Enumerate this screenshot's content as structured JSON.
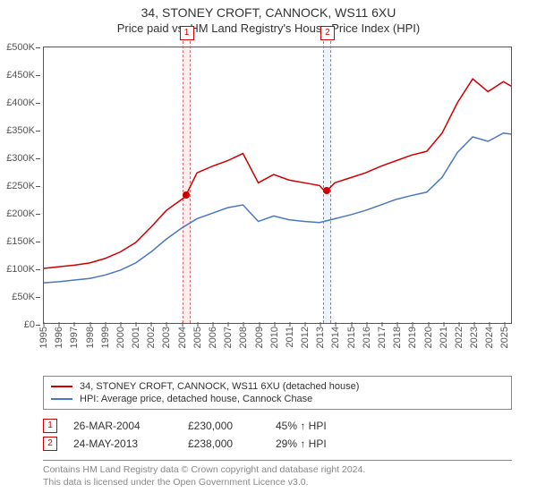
{
  "titles": {
    "line1": "34, STONEY CROFT, CANNOCK, WS11 6XU",
    "line2": "Price paid vs. HM Land Registry's House Price Index (HPI)"
  },
  "chart": {
    "type": "line",
    "background_color": "#ffffff",
    "axis_color": "#555555",
    "label_fontsize": 11,
    "x": {
      "min": 1995,
      "max": 2025.5,
      "ticks": [
        1995,
        1996,
        1997,
        1998,
        1999,
        2000,
        2001,
        2002,
        2003,
        2004,
        2005,
        2006,
        2007,
        2008,
        2009,
        2010,
        2011,
        2012,
        2013,
        2014,
        2015,
        2016,
        2017,
        2018,
        2019,
        2020,
        2021,
        2022,
        2023,
        2024,
        2025
      ]
    },
    "y": {
      "min": 0,
      "max": 500000,
      "tick_step": 50000,
      "tick_labels": [
        "£0",
        "£50K",
        "£100K",
        "£150K",
        "£200K",
        "£250K",
        "£300K",
        "£350K",
        "£400K",
        "£450K",
        "£500K"
      ]
    },
    "series": [
      {
        "key": "property",
        "color": "#cc0000",
        "line_width": 1.5,
        "legend": "34, STONEY CROFT, CANNOCK, WS11 6XU (detached house)",
        "points": [
          [
            1995,
            100000
          ],
          [
            1996,
            103000
          ],
          [
            1997,
            106000
          ],
          [
            1998,
            110000
          ],
          [
            1999,
            118000
          ],
          [
            2000,
            130000
          ],
          [
            2001,
            147000
          ],
          [
            2002,
            175000
          ],
          [
            2003,
            205000
          ],
          [
            2004,
            225000
          ],
          [
            2004.23,
            230000
          ],
          [
            2005,
            273000
          ],
          [
            2006,
            285000
          ],
          [
            2007,
            295000
          ],
          [
            2008,
            308000
          ],
          [
            2009,
            255000
          ],
          [
            2010,
            270000
          ],
          [
            2011,
            260000
          ],
          [
            2012,
            255000
          ],
          [
            2013,
            250000
          ],
          [
            2013.39,
            238000
          ],
          [
            2014,
            255000
          ],
          [
            2015,
            264000
          ],
          [
            2016,
            273000
          ],
          [
            2017,
            285000
          ],
          [
            2018,
            295000
          ],
          [
            2019,
            305000
          ],
          [
            2020,
            312000
          ],
          [
            2021,
            345000
          ],
          [
            2022,
            400000
          ],
          [
            2023,
            443000
          ],
          [
            2024,
            420000
          ],
          [
            2025,
            438000
          ],
          [
            2025.5,
            430000
          ]
        ]
      },
      {
        "key": "hpi",
        "color": "#4a77c4",
        "line_width": 1.5,
        "legend": "HPI: Average price, detached house, Cannock Chase",
        "points": [
          [
            1995,
            74000
          ],
          [
            1996,
            76000
          ],
          [
            1997,
            79000
          ],
          [
            1998,
            82000
          ],
          [
            1999,
            88000
          ],
          [
            2000,
            97000
          ],
          [
            2001,
            110000
          ],
          [
            2002,
            130000
          ],
          [
            2003,
            153000
          ],
          [
            2004,
            173000
          ],
          [
            2005,
            190000
          ],
          [
            2006,
            200000
          ],
          [
            2007,
            210000
          ],
          [
            2008,
            215000
          ],
          [
            2009,
            185000
          ],
          [
            2010,
            195000
          ],
          [
            2011,
            188000
          ],
          [
            2012,
            185000
          ],
          [
            2013,
            183000
          ],
          [
            2014,
            190000
          ],
          [
            2015,
            197000
          ],
          [
            2016,
            205000
          ],
          [
            2017,
            215000
          ],
          [
            2018,
            225000
          ],
          [
            2019,
            232000
          ],
          [
            2020,
            238000
          ],
          [
            2021,
            265000
          ],
          [
            2022,
            310000
          ],
          [
            2023,
            338000
          ],
          [
            2024,
            330000
          ],
          [
            2025,
            345000
          ],
          [
            2025.5,
            343000
          ]
        ]
      }
    ],
    "markers": [
      {
        "n": "1",
        "x": 2004.23,
        "y": 230000,
        "band_color": "#f9dede",
        "band_width": 7,
        "dot_color": "#cc0000"
      },
      {
        "n": "2",
        "x": 2013.39,
        "y": 238000,
        "band_color": "#dbe7f5",
        "band_width": 7,
        "dot_color": "#cc0000"
      }
    ]
  },
  "legend_title": "",
  "transactions": [
    {
      "n": "1",
      "date": "26-MAR-2004",
      "price": "£230,000",
      "hpi": "45% ↑ HPI"
    },
    {
      "n": "2",
      "date": "24-MAY-2013",
      "price": "£238,000",
      "hpi": "29% ↑ HPI"
    }
  ],
  "footnote": {
    "line1": "Contains HM Land Registry data © Crown copyright and database right 2024.",
    "line2": "This data is licensed under the Open Government Licence v3.0."
  }
}
